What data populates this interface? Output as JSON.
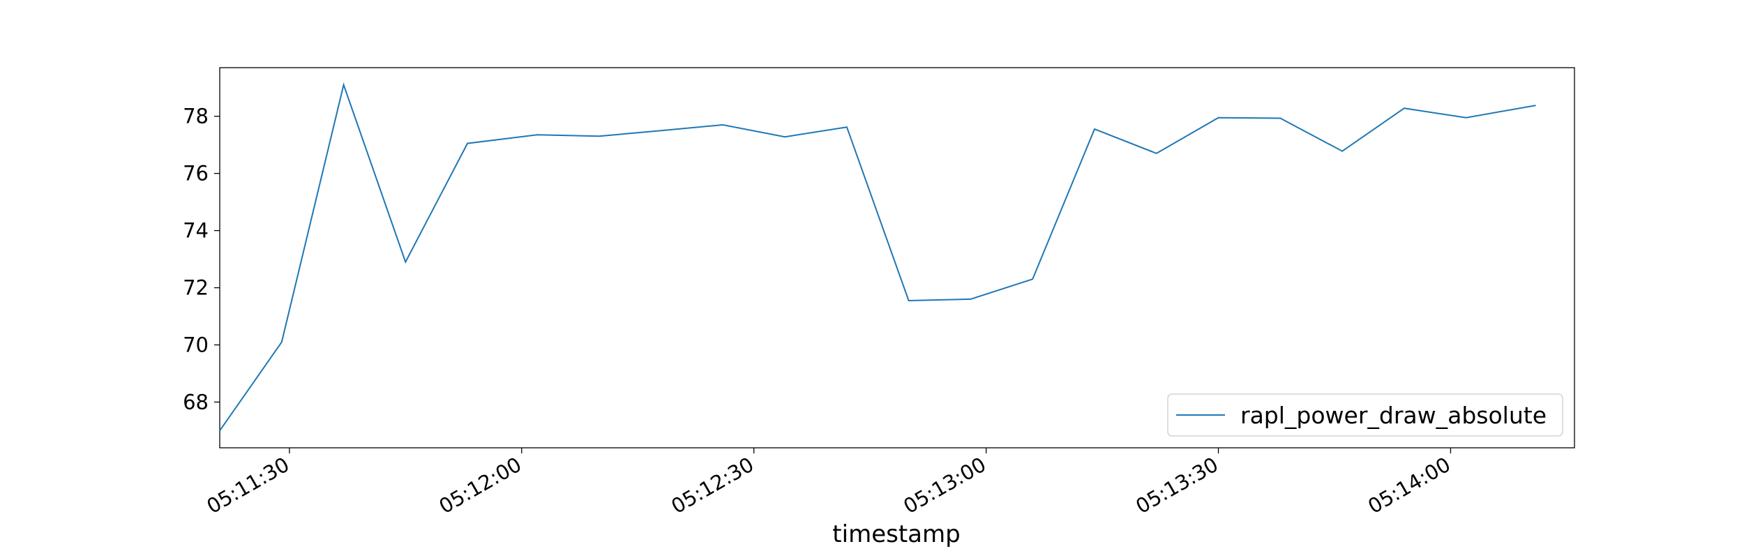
{
  "chart_data": {
    "type": "line",
    "title": "",
    "xlabel": "timestamp",
    "ylabel": "",
    "x": [
      "05:11:21",
      "05:11:29",
      "05:11:37",
      "05:11:45",
      "05:11:53",
      "05:12:02",
      "05:12:10",
      "05:12:18",
      "05:12:26",
      "05:12:34",
      "05:12:42",
      "05:12:50",
      "05:12:58",
      "05:13:06",
      "05:13:14",
      "05:13:22",
      "05:13:30",
      "05:13:38",
      "05:13:46",
      "05:13:54",
      "05:14:02",
      "05:14:11"
    ],
    "series": [
      {
        "name": "rapl_power_draw_absolute",
        "color": "#1f77b4",
        "values": [
          67.0,
          70.1,
          79.1,
          72.9,
          77.05,
          77.35,
          77.3,
          77.5,
          77.7,
          77.28,
          77.62,
          71.55,
          71.6,
          72.3,
          77.55,
          76.7,
          77.95,
          77.93,
          76.78,
          78.28,
          77.95,
          78.38
        ]
      }
    ],
    "x_ticks": [
      "05:11:30",
      "05:12:00",
      "05:12:30",
      "05:13:00",
      "05:13:30",
      "05:14:00"
    ],
    "y_ticks": [
      "68",
      "70",
      "72",
      "74",
      "76",
      "78"
    ],
    "xlim": [
      "05:11:21",
      "05:14:16"
    ],
    "ylim": [
      66.4,
      79.7
    ],
    "grid": false,
    "legend": "lower right"
  }
}
